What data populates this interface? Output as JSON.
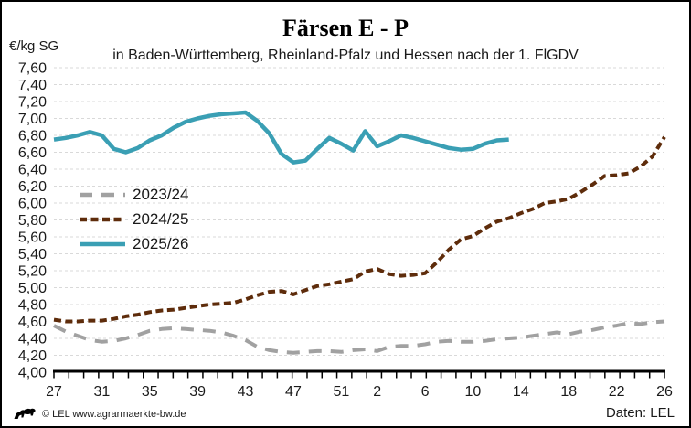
{
  "header": {
    "title": "Färsen E - P",
    "subtitle": "in Baden-Württemberg, Rheinland-Pfalz und Hessen nach der 1. FlGDV",
    "unit_label": "€/kg SG"
  },
  "footer": {
    "copyright": "© LEL www.agrarmaerkte-bw.de",
    "source": "Daten: LEL",
    "logo_icon": "bw-lion-logo"
  },
  "colors": {
    "series_2023": "#a1a1a1",
    "series_2024": "#5e2c0b",
    "series_2025": "#3a9fb4",
    "gridline": "#d9d9d9",
    "axis": "#000000",
    "text": "#1a1a1a"
  },
  "chart_data": {
    "type": "line",
    "title": "Färsen E - P",
    "subtitle": "in Baden-Württemberg, Rheinland-Pfalz und Hessen nach der 1. FlGDV",
    "ylabel": "€/kg SG",
    "xlabel": "",
    "ylim": [
      4.0,
      7.6
    ],
    "ytick_step": 0.2,
    "grid": "horizontal-dashed",
    "legend_position": "inside-left",
    "y_tick_labels": [
      "7,60",
      "7,40",
      "7,20",
      "7,00",
      "6,80",
      "6,60",
      "6,40",
      "6,20",
      "6,00",
      "5,80",
      "5,60",
      "5,40",
      "5,20",
      "5,00",
      "4,80",
      "4,60",
      "4,40",
      "4,20",
      "4,00"
    ],
    "weeks": [
      27,
      28,
      29,
      30,
      31,
      32,
      33,
      34,
      35,
      36,
      37,
      38,
      39,
      40,
      41,
      42,
      43,
      44,
      45,
      46,
      47,
      48,
      49,
      50,
      51,
      52,
      1,
      2,
      3,
      4,
      5,
      6,
      7,
      8,
      9,
      10,
      11,
      12,
      13,
      14,
      15,
      16,
      17,
      18,
      19,
      20,
      21,
      22,
      23,
      24,
      25,
      26
    ],
    "x_tick_labels": [
      "27",
      "31",
      "35",
      "39",
      "43",
      "47",
      "51",
      "2",
      "6",
      "10",
      "14",
      "18",
      "22",
      "26"
    ],
    "series": [
      {
        "name": "2023/24",
        "color": "#a1a1a1",
        "style": "dashed-long",
        "values": [
          4.55,
          4.48,
          4.43,
          4.38,
          4.36,
          4.37,
          4.4,
          4.44,
          4.49,
          4.51,
          4.52,
          4.51,
          4.5,
          4.49,
          4.47,
          4.43,
          4.38,
          4.3,
          4.26,
          4.24,
          4.23,
          4.24,
          4.25,
          4.25,
          4.24,
          4.26,
          4.27,
          4.25,
          4.3,
          4.31,
          4.31,
          4.33,
          4.36,
          4.37,
          4.36,
          4.36,
          4.37,
          4.39,
          4.4,
          4.41,
          4.43,
          4.45,
          4.47,
          4.45,
          4.48,
          4.5,
          4.53,
          4.55,
          4.58,
          4.57,
          4.59,
          4.6
        ]
      },
      {
        "name": "2024/25",
        "color": "#5e2c0b",
        "style": "dashed-short",
        "values": [
          4.62,
          4.6,
          4.6,
          4.61,
          4.61,
          4.63,
          4.66,
          4.68,
          4.71,
          4.73,
          4.74,
          4.76,
          4.78,
          4.8,
          4.81,
          4.82,
          4.86,
          4.91,
          4.95,
          4.96,
          4.92,
          4.97,
          5.02,
          5.04,
          5.07,
          5.1,
          5.19,
          5.22,
          5.16,
          5.14,
          5.15,
          5.17,
          5.3,
          5.45,
          5.57,
          5.61,
          5.7,
          5.78,
          5.82,
          5.88,
          5.93,
          6.0,
          6.02,
          6.05,
          6.13,
          6.22,
          6.32,
          6.33,
          6.35,
          6.43,
          6.55,
          6.78
        ]
      },
      {
        "name": "2025/26",
        "color": "#3a9fb4",
        "style": "solid",
        "values": [
          6.75,
          6.77,
          6.8,
          6.84,
          6.8,
          6.64,
          6.6,
          6.65,
          6.74,
          6.8,
          6.89,
          6.96,
          7.0,
          7.03,
          7.05,
          7.06,
          7.07,
          6.97,
          6.82,
          6.58,
          6.48,
          6.5,
          6.64,
          6.77,
          6.7,
          6.62,
          6.85,
          6.67,
          6.73,
          6.8,
          6.77,
          6.73,
          6.69,
          6.65,
          6.63,
          6.64,
          6.7,
          6.74,
          6.75
        ]
      }
    ]
  }
}
